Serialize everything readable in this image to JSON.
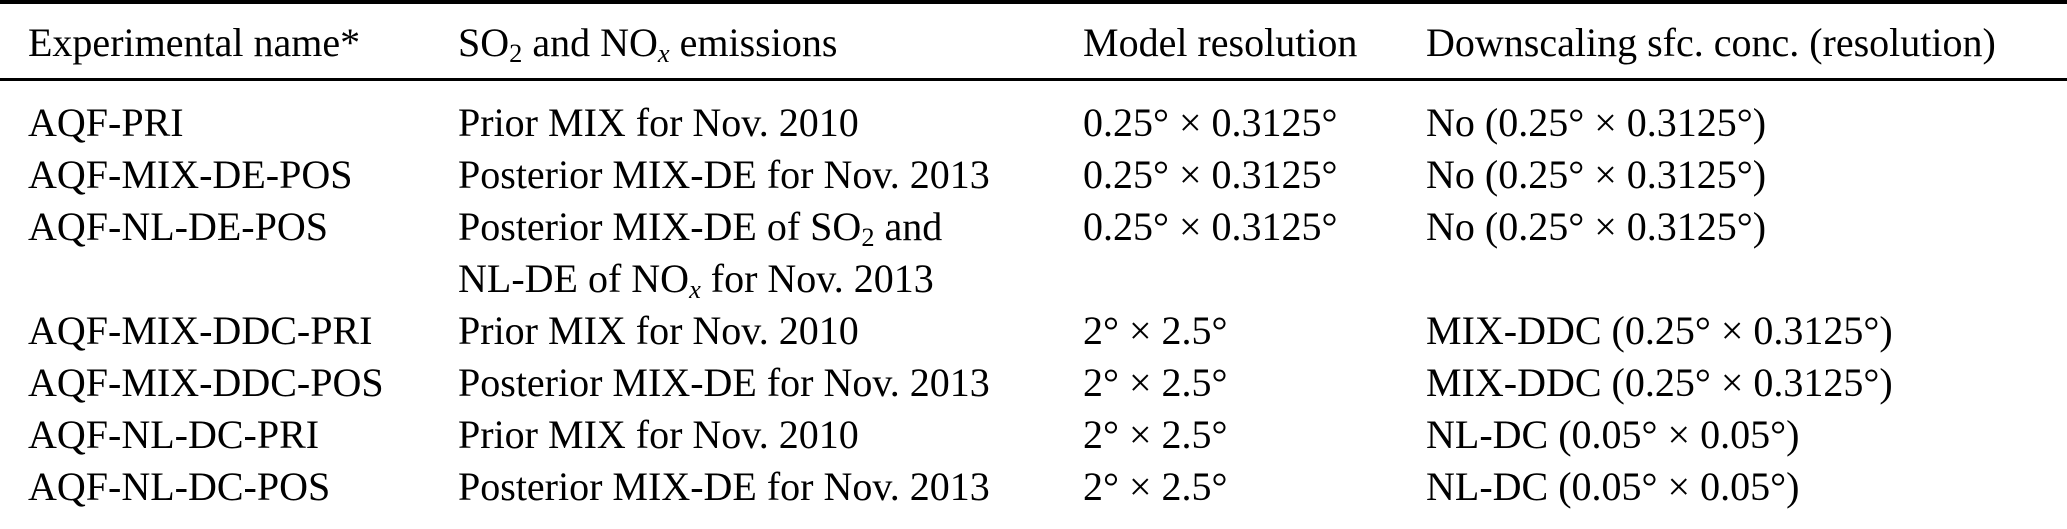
{
  "colors": {
    "background": "#ffffff",
    "text": "#000000",
    "rule": "#000000"
  },
  "table": {
    "columns": [
      {
        "id": "experimental-name",
        "runs": [
          [
            {
              "t": "Experimental name*"
            }
          ]
        ]
      },
      {
        "id": "emissions",
        "runs": [
          [
            {
              "t": "SO"
            },
            {
              "t": "2",
              "sub": true
            },
            {
              "t": " and NO"
            },
            {
              "t": "x",
              "sub": true,
              "it": true
            },
            {
              "t": " emissions"
            }
          ]
        ]
      },
      {
        "id": "model-resolution",
        "runs": [
          [
            {
              "t": "Model resolution"
            }
          ]
        ]
      },
      {
        "id": "downscaling",
        "runs": [
          [
            {
              "t": "Downscaling sfc. conc. (resolution)"
            }
          ]
        ]
      }
    ],
    "rows": [
      {
        "cells": [
          [
            [
              {
                "t": "AQF-PRI"
              }
            ]
          ],
          [
            [
              {
                "t": "Prior MIX for Nov. 2010"
              }
            ]
          ],
          [
            [
              {
                "t": "0.25° × 0.3125°"
              }
            ]
          ],
          [
            [
              {
                "t": "No (0.25° × 0.3125°)"
              }
            ]
          ]
        ]
      },
      {
        "cells": [
          [
            [
              {
                "t": "AQF-MIX-DE-POS"
              }
            ]
          ],
          [
            [
              {
                "t": "Posterior MIX-DE for Nov. 2013"
              }
            ]
          ],
          [
            [
              {
                "t": "0.25° × 0.3125°"
              }
            ]
          ],
          [
            [
              {
                "t": "No (0.25° × 0.3125°)"
              }
            ]
          ]
        ]
      },
      {
        "cells": [
          [
            [
              {
                "t": "AQF-NL-DE-POS"
              }
            ]
          ],
          [
            [
              {
                "t": "Posterior MIX-DE of SO"
              },
              {
                "t": "2",
                "sub": true
              },
              {
                "t": " and"
              }
            ],
            [
              {
                "t": "NL-DE of NO"
              },
              {
                "t": "x",
                "sub": true,
                "it": true
              },
              {
                "t": " for Nov. 2013"
              }
            ]
          ],
          [
            [
              {
                "t": "0.25° × 0.3125°"
              }
            ]
          ],
          [
            [
              {
                "t": "No (0.25° × 0.3125°)"
              }
            ]
          ]
        ]
      },
      {
        "cells": [
          [
            [
              {
                "t": "AQF-MIX-DDC-PRI"
              }
            ]
          ],
          [
            [
              {
                "t": "Prior MIX for Nov. 2010"
              }
            ]
          ],
          [
            [
              {
                "t": "2° × 2.5°"
              }
            ]
          ],
          [
            [
              {
                "t": "MIX-DDC (0.25° × 0.3125°)"
              }
            ]
          ]
        ]
      },
      {
        "cells": [
          [
            [
              {
                "t": "AQF-MIX-DDC-POS"
              }
            ]
          ],
          [
            [
              {
                "t": "Posterior MIX-DE for Nov. 2013"
              }
            ]
          ],
          [
            [
              {
                "t": "2° × 2.5°"
              }
            ]
          ],
          [
            [
              {
                "t": "MIX-DDC (0.25° × 0.3125°)"
              }
            ]
          ]
        ]
      },
      {
        "cells": [
          [
            [
              {
                "t": "AQF-NL-DC-PRI"
              }
            ]
          ],
          [
            [
              {
                "t": "Prior MIX for Nov. 2010"
              }
            ]
          ],
          [
            [
              {
                "t": "2° × 2.5°"
              }
            ]
          ],
          [
            [
              {
                "t": "NL-DC (0.05° × 0.05°)"
              }
            ]
          ]
        ]
      },
      {
        "cells": [
          [
            [
              {
                "t": "AQF-NL-DC-POS"
              }
            ]
          ],
          [
            [
              {
                "t": "Posterior MIX-DE for Nov. 2013"
              }
            ]
          ],
          [
            [
              {
                "t": "2° × 2.5°"
              }
            ]
          ],
          [
            [
              {
                "t": "NL-DC (0.05° × 0.05°)"
              }
            ]
          ]
        ]
      }
    ]
  }
}
